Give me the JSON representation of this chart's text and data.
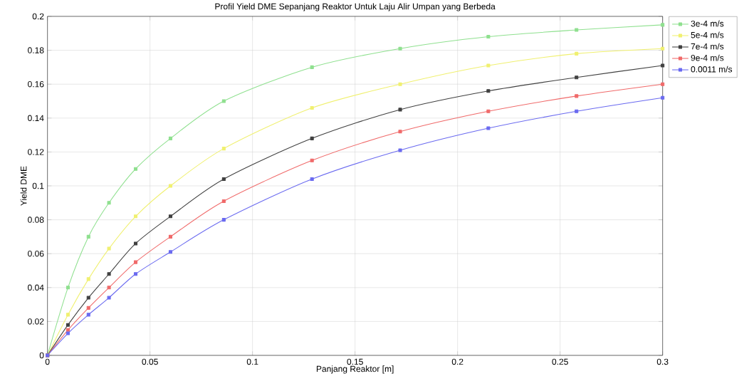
{
  "chart_data": {
    "type": "line",
    "title": "Profil Yield DME Sepanjang Reaktor Untuk Laju Alir Umpan yang Berbeda",
    "xlabel": "Panjang Reaktor [m]",
    "ylabel": "Yield DME",
    "xlim": [
      0,
      0.3
    ],
    "ylim": [
      0,
      0.2
    ],
    "xticks": [
      0,
      0.05,
      0.1,
      0.15,
      0.2,
      0.25,
      0.3
    ],
    "yticks": [
      0,
      0.02,
      0.04,
      0.06,
      0.08,
      0.1,
      0.12,
      0.14,
      0.16,
      0.18,
      0.2
    ],
    "grid": true,
    "legend": "top right",
    "marker": "square",
    "line_style": "solid",
    "x": [
      0,
      0.01,
      0.02,
      0.03,
      0.043,
      0.06,
      0.086,
      0.129,
      0.172,
      0.215,
      0.258,
      0.3
    ],
    "series": [
      {
        "name": "3e-4 m/s",
        "color": "#8fe08f",
        "values": [
          0,
          0.04,
          0.07,
          0.09,
          0.11,
          0.128,
          0.15,
          0.17,
          0.181,
          0.188,
          0.192,
          0.195
        ]
      },
      {
        "name": "5e-4 m/s",
        "color": "#f0f070",
        "values": [
          0,
          0.024,
          0.045,
          0.063,
          0.082,
          0.1,
          0.122,
          0.146,
          0.16,
          0.171,
          0.178,
          0.181
        ]
      },
      {
        "name": "7e-4 m/s",
        "color": "#404040",
        "values": [
          0,
          0.018,
          0.034,
          0.048,
          0.066,
          0.082,
          0.104,
          0.128,
          0.145,
          0.156,
          0.164,
          0.171
        ]
      },
      {
        "name": "9e-4 m/s",
        "color": "#f06a6a",
        "values": [
          0,
          0.015,
          0.028,
          0.04,
          0.055,
          0.07,
          0.091,
          0.115,
          0.132,
          0.144,
          0.153,
          0.16
        ]
      },
      {
        "name": "0.0011 m/s",
        "color": "#6a6af0",
        "values": [
          0,
          0.013,
          0.024,
          0.034,
          0.048,
          0.061,
          0.08,
          0.104,
          0.121,
          0.134,
          0.144,
          0.152
        ]
      }
    ]
  }
}
